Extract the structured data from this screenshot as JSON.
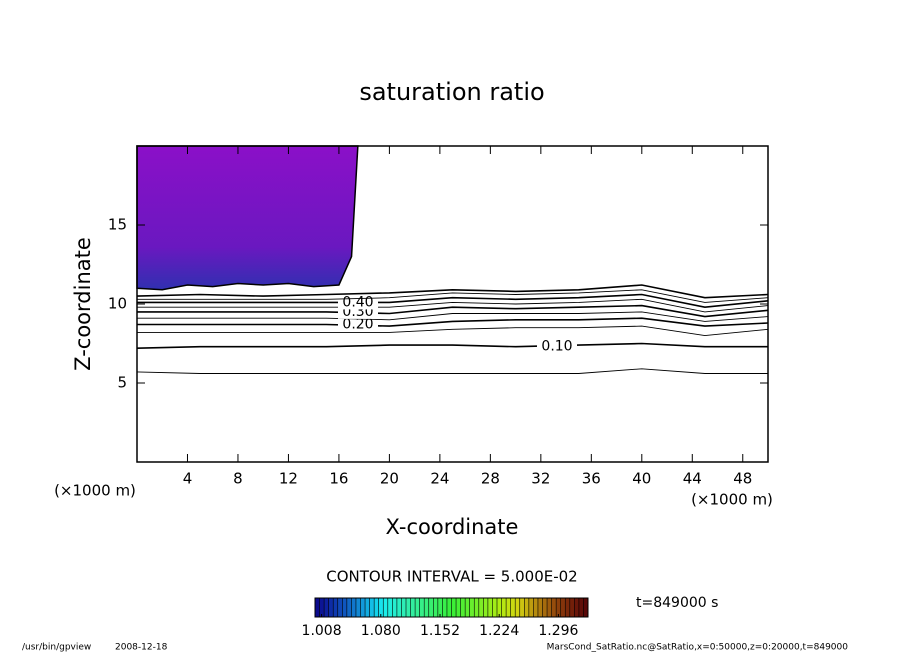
{
  "chart_data": {
    "type": "contour",
    "title": "saturation ratio",
    "x_label": "X-coordinate",
    "y_label": "Z-coordinate",
    "x_unit": "(×1000 m)",
    "y_unit": "(×1000 m)",
    "xlim": [
      0,
      50
    ],
    "ylim": [
      0,
      20
    ],
    "xticks": [
      4,
      8,
      12,
      16,
      20,
      24,
      28,
      32,
      36,
      40,
      44,
      48
    ],
    "yticks": [
      5,
      10,
      15
    ],
    "contours": {
      "x": [
        0,
        5,
        10,
        15,
        20,
        25,
        30,
        35,
        40,
        45,
        50
      ],
      "levels": [
        {
          "value": 0.05,
          "z": [
            5.7,
            5.6,
            5.6,
            5.6,
            5.6,
            5.6,
            5.6,
            5.6,
            5.9,
            5.6,
            5.6
          ]
        },
        {
          "value": 0.1,
          "label": "0.10",
          "z": [
            7.2,
            7.3,
            7.3,
            7.3,
            7.4,
            7.4,
            7.3,
            7.4,
            7.5,
            7.3,
            7.3
          ]
        },
        {
          "value": 0.15,
          "z": [
            8.2,
            8.2,
            8.2,
            8.2,
            8.2,
            8.4,
            8.5,
            8.5,
            8.6,
            8.0,
            8.4
          ]
        },
        {
          "value": 0.2,
          "label": "0.20",
          "z": [
            8.7,
            8.7,
            8.7,
            8.7,
            8.6,
            8.9,
            9.0,
            9.0,
            9.1,
            8.6,
            8.8
          ]
        },
        {
          "value": 0.25,
          "z": [
            9.1,
            9.1,
            9.1,
            9.1,
            9.0,
            9.4,
            9.4,
            9.4,
            9.5,
            8.9,
            9.2
          ]
        },
        {
          "value": 0.3,
          "label": "0.30",
          "z": [
            9.5,
            9.5,
            9.5,
            9.5,
            9.4,
            9.8,
            9.7,
            9.8,
            9.9,
            9.2,
            9.6
          ]
        },
        {
          "value": 0.35,
          "z": [
            9.8,
            9.8,
            9.8,
            9.8,
            9.8,
            10.1,
            10.0,
            10.1,
            10.3,
            9.5,
            9.9
          ]
        },
        {
          "value": 0.4,
          "label": "0.40",
          "z": [
            10.1,
            10.1,
            10.1,
            10.1,
            10.1,
            10.4,
            10.3,
            10.4,
            10.6,
            9.8,
            10.2
          ]
        },
        {
          "value": 0.45,
          "z": [
            10.3,
            10.3,
            10.3,
            10.3,
            10.4,
            10.7,
            10.6,
            10.7,
            10.9,
            10.1,
            10.4
          ]
        },
        {
          "value": 0.5,
          "z": [
            10.5,
            10.6,
            10.5,
            10.6,
            10.7,
            10.9,
            10.8,
            10.9,
            11.2,
            10.4,
            10.6
          ]
        }
      ]
    },
    "shading": {
      "color": "#8b10c8",
      "x": [
        0,
        2,
        4,
        6,
        8,
        10,
        12,
        14,
        16,
        17,
        17.5
      ],
      "z": [
        11.0,
        10.9,
        11.2,
        11.1,
        11.3,
        11.2,
        11.3,
        11.1,
        11.2,
        13,
        20
      ]
    },
    "contour_interval": "CONTOUR INTERVAL = 5.000E-02",
    "time": "t=849000 s",
    "colorbar_lim": [
      1.0,
      1.332
    ],
    "colorbar_ticks": [
      1.008,
      {
        "value": 1.08,
        "label": "1.080"
      },
      1.152,
      1.224,
      1.296
    ],
    "footer_program": "/usr/bin/gpview",
    "footer_date": "2008-12-18",
    "footer_source": "MarsCond_SatRatio.nc@SatRatio,x=0:50000,z=0:20000,t=849000"
  }
}
